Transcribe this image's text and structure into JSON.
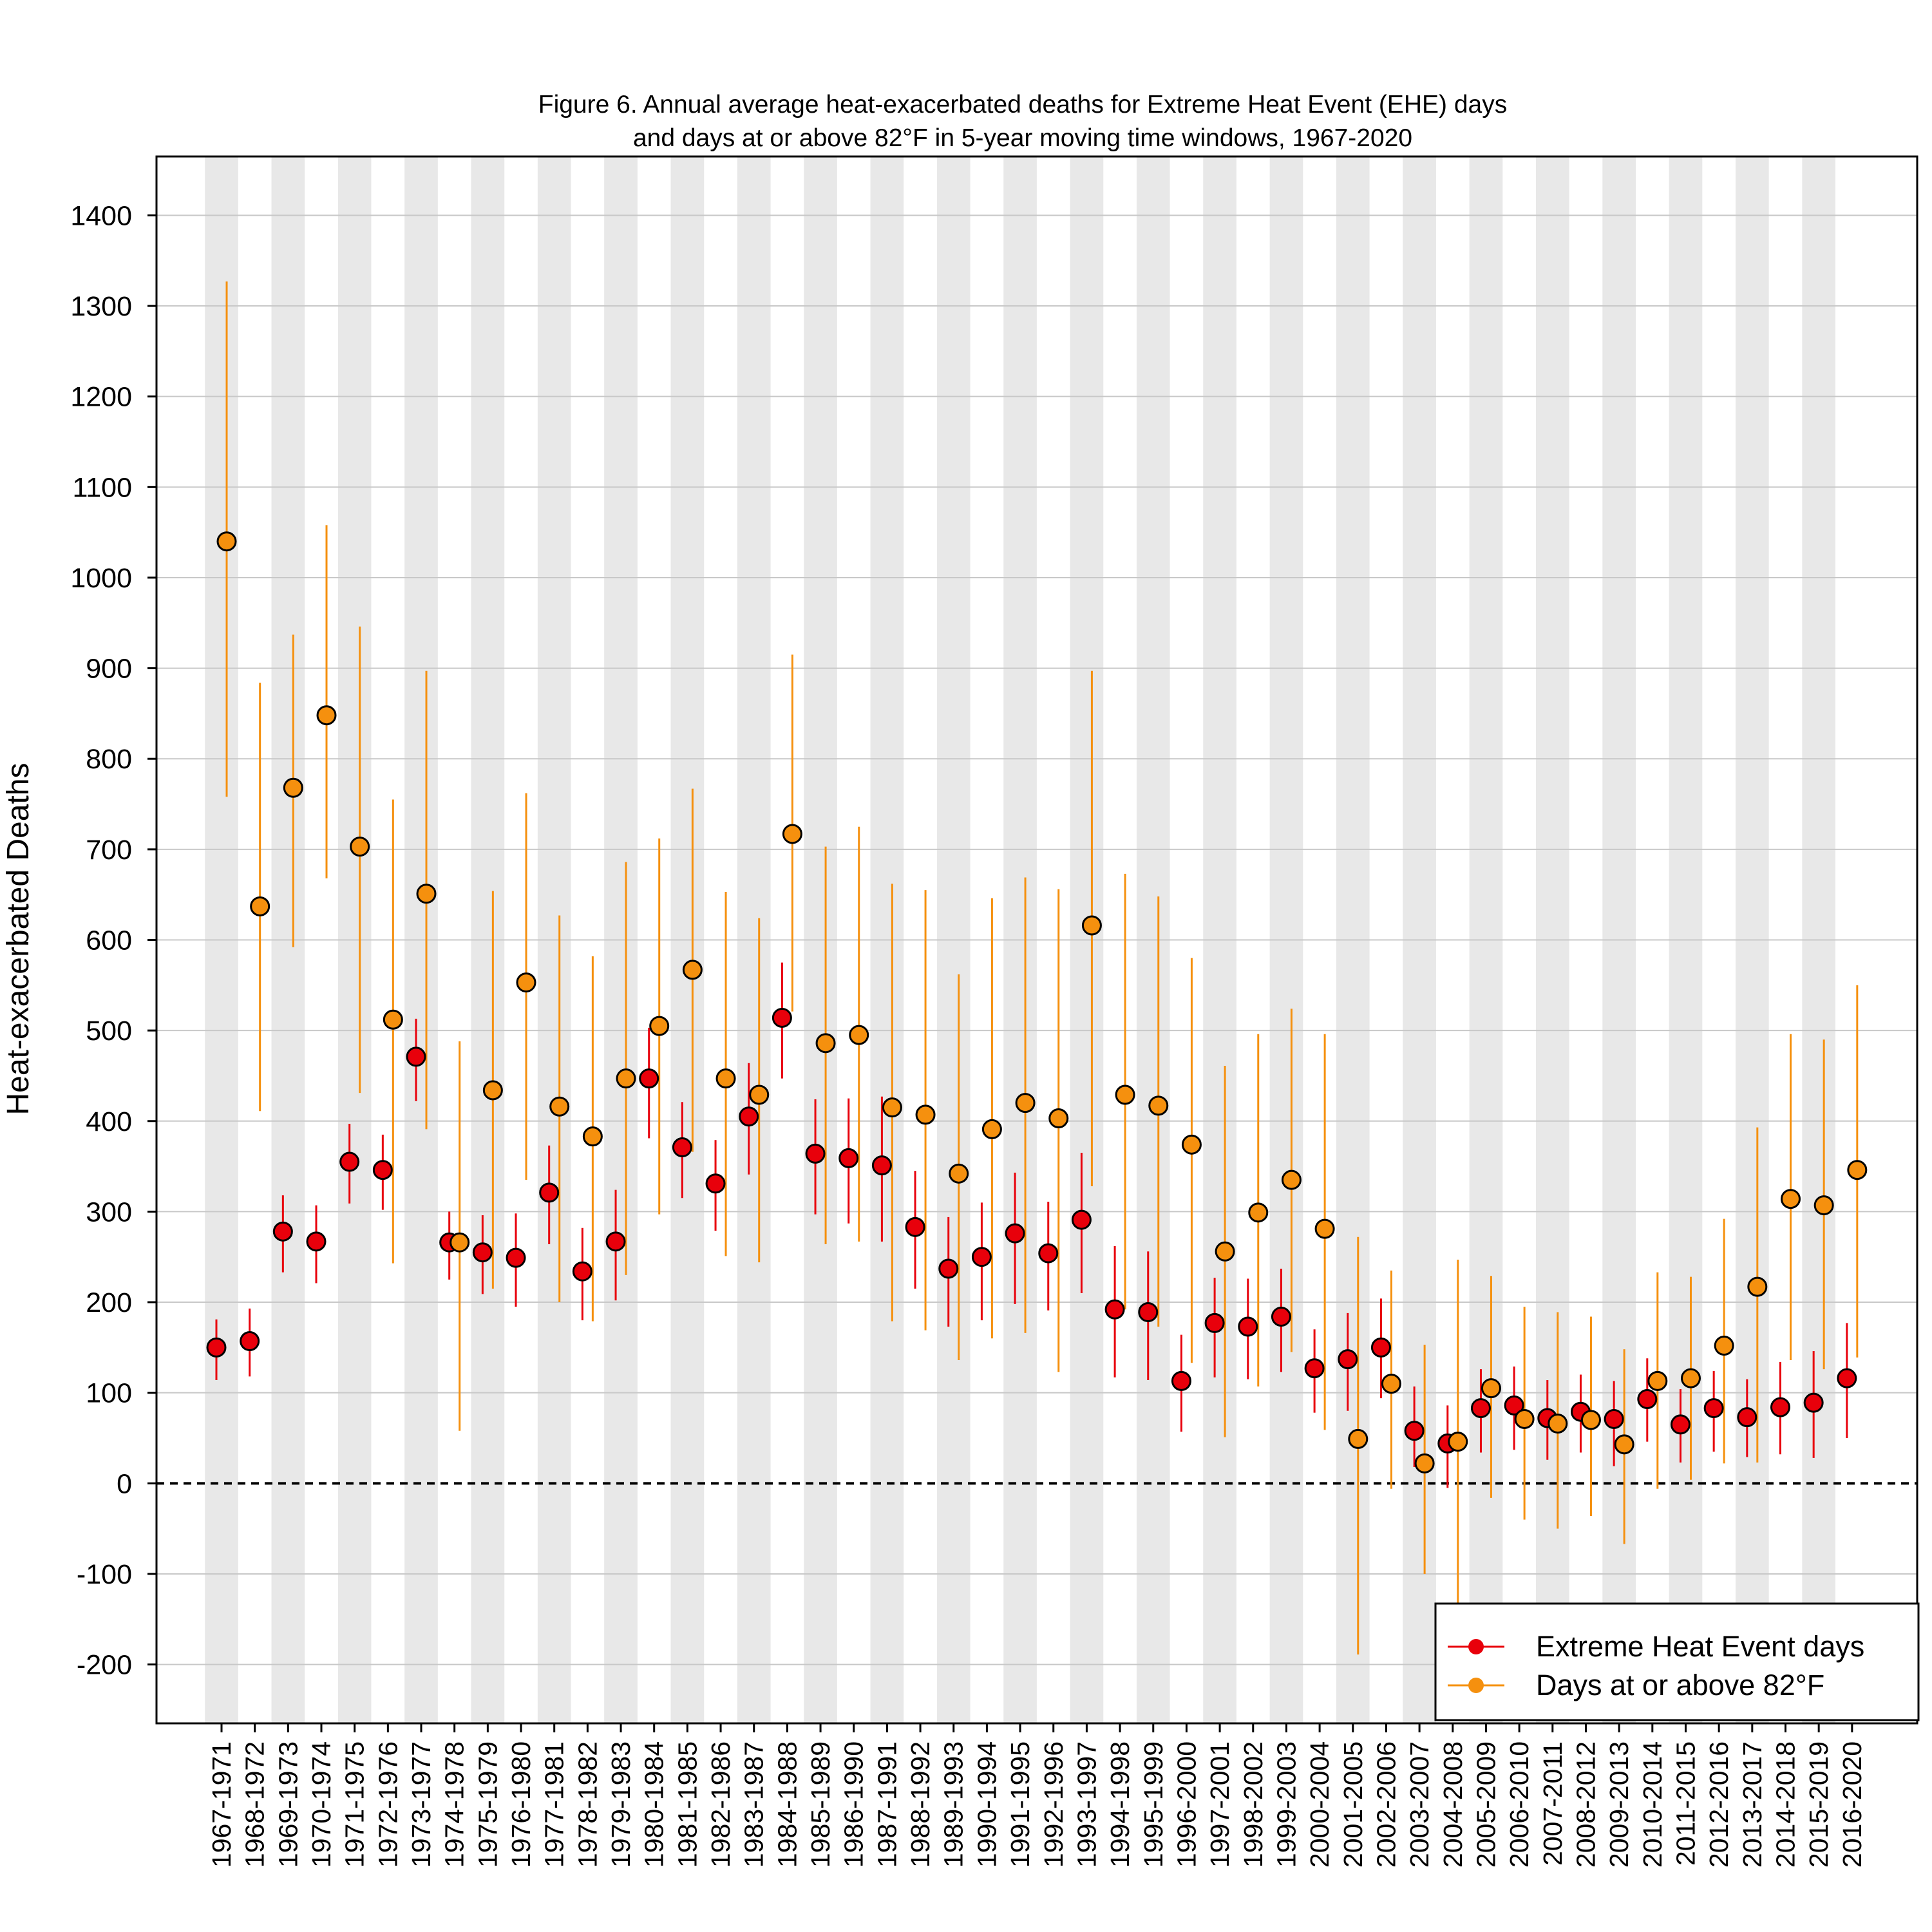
{
  "chart_data": {
    "type": "scatter",
    "title": "Figure 6. Annual average heat-exacerbated deaths for Extreme Heat Event (EHE) days",
    "subtitle": "and days at or above 82°F in 5-year moving time windows, 1967-2020",
    "xlabel": "",
    "ylabel": "Heat-exacerbated Deaths",
    "ylim": [
      -265,
      1465
    ],
    "yticks": [
      -200,
      -100,
      0,
      100,
      200,
      300,
      400,
      500,
      600,
      700,
      800,
      900,
      1000,
      1100,
      1200,
      1300,
      1400
    ],
    "grid": true,
    "reference_line": 0,
    "legend_position": "bottom-right",
    "categories": [
      "1967-1971",
      "1968-1972",
      "1969-1973",
      "1970-1974",
      "1971-1975",
      "1972-1976",
      "1973-1977",
      "1974-1978",
      "1975-1979",
      "1976-1980",
      "1977-1981",
      "1978-1982",
      "1979-1983",
      "1980-1984",
      "1981-1985",
      "1982-1986",
      "1983-1987",
      "1984-1988",
      "1985-1989",
      "1986-1990",
      "1987-1991",
      "1988-1992",
      "1989-1993",
      "1990-1994",
      "1991-1995",
      "1992-1996",
      "1993-1997",
      "1994-1998",
      "1995-1999",
      "1996-2000",
      "1997-2001",
      "1998-2002",
      "1999-2003",
      "2000-2004",
      "2001-2005",
      "2002-2006",
      "2003-2007",
      "2004-2008",
      "2005-2009",
      "2006-2010",
      "2007-2011",
      "2008-2012",
      "2009-2013",
      "2010-2014",
      "2011-2015",
      "2012-2016",
      "2013-2017",
      "2014-2018",
      "2015-2019",
      "2016-2020"
    ],
    "series": [
      {
        "name": "Extreme Heat Event days",
        "color": "#e8000b",
        "values": [
          150,
          157,
          278,
          267,
          355,
          346,
          471,
          266,
          255,
          249,
          321,
          234,
          267,
          447,
          371,
          331,
          405,
          514,
          364,
          359,
          351,
          283,
          237,
          250,
          276,
          254,
          291,
          192,
          189,
          113,
          177,
          173,
          184,
          127,
          137,
          150,
          58,
          44,
          83,
          86,
          72,
          79,
          71,
          93,
          65,
          83,
          73,
          84,
          89,
          116
        ],
        "lower": [
          114,
          118,
          233,
          221,
          309,
          302,
          422,
          225,
          209,
          195,
          264,
          180,
          202,
          381,
          315,
          279,
          341,
          447,
          297,
          287,
          267,
          215,
          173,
          180,
          198,
          191,
          210,
          117,
          114,
          57,
          117,
          115,
          123,
          78,
          80,
          94,
          18,
          -5,
          34,
          37,
          26,
          34,
          19,
          46,
          23,
          35,
          29,
          32,
          28,
          50
        ],
        "upper": [
          181,
          193,
          318,
          307,
          397,
          385,
          513,
          300,
          296,
          298,
          373,
          282,
          324,
          503,
          421,
          379,
          464,
          575,
          424,
          425,
          427,
          345,
          294,
          310,
          343,
          311,
          365,
          262,
          256,
          164,
          227,
          226,
          237,
          170,
          188,
          204,
          107,
          86,
          126,
          129,
          114,
          120,
          113,
          138,
          104,
          124,
          115,
          134,
          146,
          177
        ]
      },
      {
        "name": "Days at or above 82°F",
        "color": "#f5900e",
        "values": [
          1040,
          637,
          768,
          848,
          703,
          512,
          651,
          266,
          434,
          553,
          416,
          383,
          447,
          505,
          567,
          447,
          429,
          717,
          486,
          495,
          415,
          407,
          342,
          391,
          420,
          403,
          616,
          429,
          417,
          374,
          256,
          299,
          335,
          281,
          49,
          110,
          22,
          46,
          105,
          71,
          66,
          70,
          43,
          113,
          116,
          152,
          217,
          314,
          307,
          346
        ],
        "lower": [
          758,
          411,
          592,
          668,
          431,
          243,
          391,
          58,
          215,
          335,
          200,
          179,
          230,
          297,
          366,
          251,
          244,
          521,
          264,
          267,
          179,
          169,
          136,
          160,
          166,
          123,
          328,
          192,
          173,
          133,
          51,
          107,
          145,
          59,
          -189,
          -6,
          -100,
          -135,
          -16,
          -40,
          -50,
          -36,
          -67,
          -6,
          4,
          22,
          23,
          136,
          126,
          139
        ],
        "upper": [
          1327,
          884,
          937,
          1058,
          946,
          755,
          897,
          488,
          654,
          762,
          627,
          582,
          686,
          712,
          767,
          653,
          624,
          915,
          703,
          725,
          662,
          655,
          562,
          646,
          669,
          656,
          897,
          673,
          648,
          580,
          461,
          496,
          524,
          496,
          272,
          235,
          153,
          247,
          229,
          195,
          189,
          184,
          148,
          233,
          228,
          292,
          393,
          496,
          490,
          550
        ]
      }
    ]
  }
}
